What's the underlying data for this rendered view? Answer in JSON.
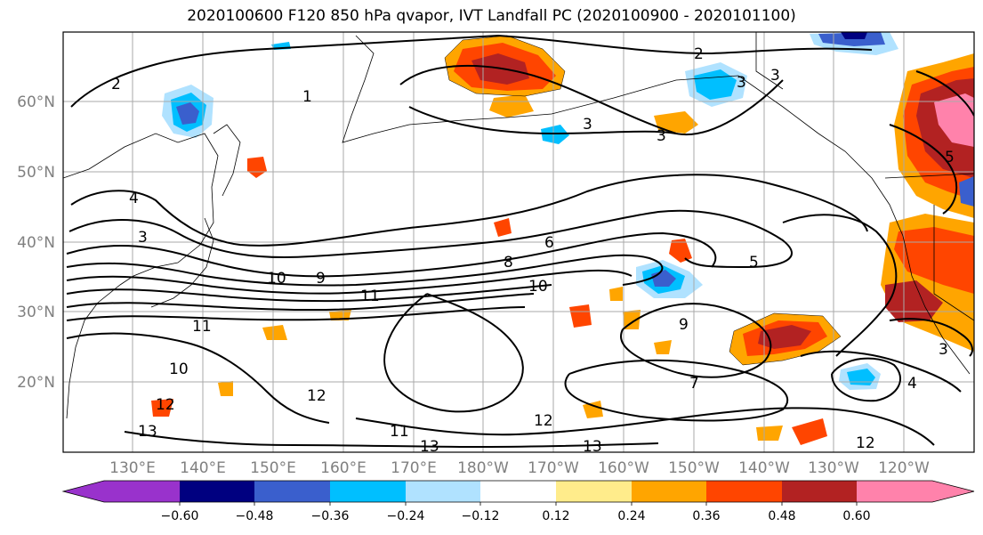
{
  "title": "2020100600 F120 850 hPa qvapor, IVT Landfall PC (2020100900 - 2020101100)",
  "x_ticks": [
    "130°E",
    "140°E",
    "150°E",
    "160°E",
    "170°E",
    "180°W",
    "170°W",
    "160°W",
    "150°W",
    "140°W",
    "130°W",
    "120°W"
  ],
  "y_ticks": [
    "60°N",
    "50°N",
    "40°N",
    "30°N",
    "20°N"
  ],
  "colorbar": {
    "colors": [
      "#9932cc",
      "#000080",
      "#3a5fcd",
      "#00bfff",
      "#b0e2ff",
      "#ffffff",
      "#ffec8b",
      "#ffa500",
      "#ff4500",
      "#b22222",
      "#ff82ab"
    ],
    "labels": [
      "−0.60",
      "−0.48",
      "−0.36",
      "−0.24",
      "−0.12",
      "0.12",
      "0.24",
      "0.36",
      "0.48",
      "0.60"
    ]
  },
  "contour_labels": [
    {
      "text": "2"
    },
    {
      "text": "2"
    },
    {
      "text": "3"
    },
    {
      "text": "3"
    },
    {
      "text": "3"
    },
    {
      "text": "3"
    },
    {
      "text": "4"
    },
    {
      "text": "3"
    },
    {
      "text": "5"
    },
    {
      "text": "5"
    },
    {
      "text": "6"
    },
    {
      "text": "8"
    },
    {
      "text": "10"
    },
    {
      "text": "9"
    },
    {
      "text": "11"
    },
    {
      "text": "10"
    },
    {
      "text": "9"
    },
    {
      "text": "11"
    },
    {
      "text": "10"
    },
    {
      "text": "12"
    },
    {
      "text": "12"
    },
    {
      "text": "13"
    },
    {
      "text": "11"
    },
    {
      "text": "13"
    },
    {
      "text": "12"
    },
    {
      "text": "13"
    },
    {
      "text": "7"
    },
    {
      "text": "4"
    },
    {
      "text": "3"
    },
    {
      "text": "12"
    },
    {
      "text": "1"
    }
  ]
}
